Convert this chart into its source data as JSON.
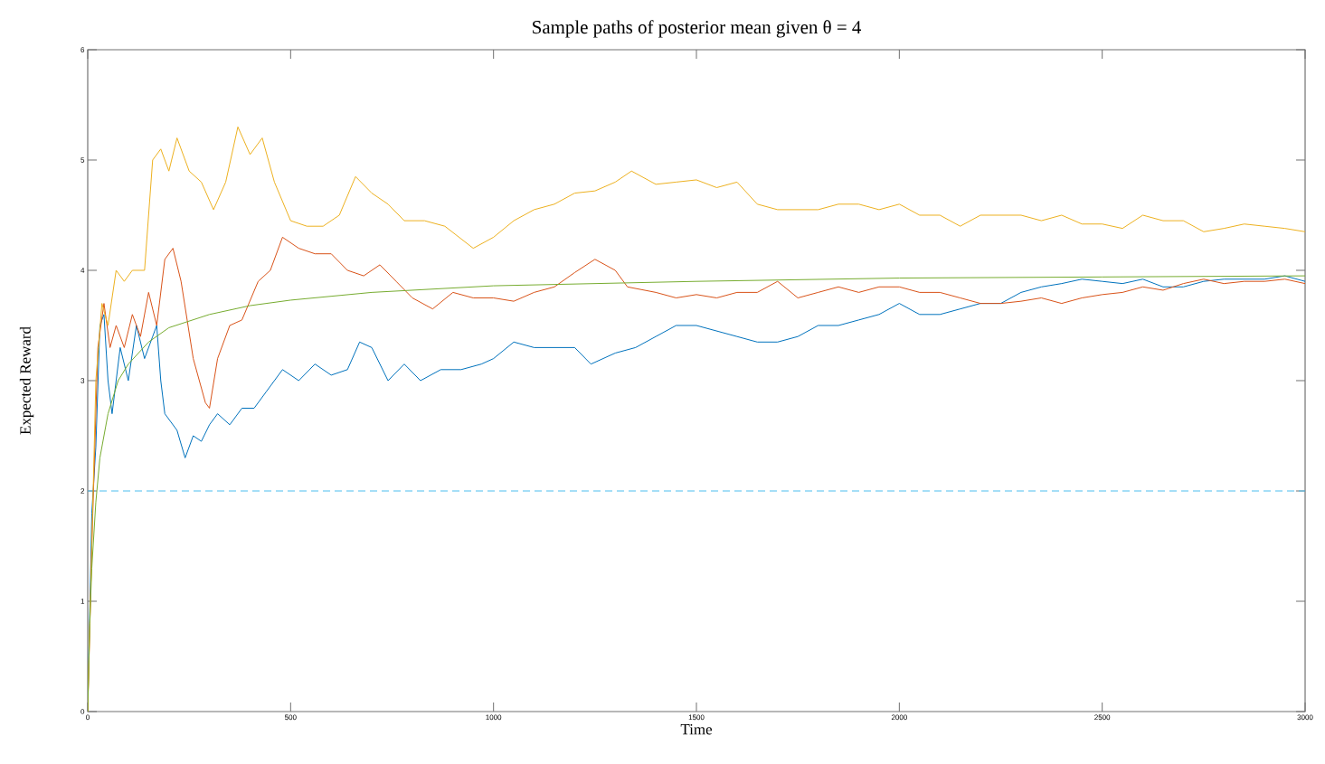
{
  "chart_data": {
    "type": "line",
    "title": "Sample paths of posterior mean given θ = 4",
    "xlabel": "Time",
    "ylabel": "Expected Reward",
    "xlim": [
      0,
      3000
    ],
    "ylim": [
      0,
      6
    ],
    "xticks": [
      0,
      500,
      1000,
      1500,
      2000,
      2500,
      3000
    ],
    "yticks": [
      0,
      1,
      2,
      3,
      4,
      5,
      6
    ],
    "line_style": "solid",
    "ref_lines": [
      {
        "axis": "y",
        "value": 2,
        "color": "#4dbeee",
        "line_style": "dashed"
      }
    ],
    "series": [
      {
        "color": "#0072bd",
        "x": [
          0,
          10,
          20,
          30,
          40,
          50,
          60,
          80,
          100,
          120,
          140,
          160,
          170,
          180,
          190,
          220,
          240,
          260,
          280,
          300,
          320,
          350,
          380,
          410,
          440,
          480,
          520,
          560,
          600,
          640,
          670,
          700,
          740,
          780,
          820,
          870,
          920,
          970,
          1000,
          1050,
          1100,
          1150,
          1200,
          1240,
          1300,
          1350,
          1400,
          1450,
          1500,
          1550,
          1600,
          1650,
          1700,
          1750,
          1800,
          1850,
          1900,
          1950,
          2000,
          2050,
          2100,
          2150,
          2200,
          2250,
          2300,
          2350,
          2400,
          2450,
          2500,
          2550,
          2600,
          2650,
          2700,
          2750,
          2800,
          2850,
          2900,
          2950,
          3000
        ],
        "values": [
          0,
          1.8,
          2.4,
          3.5,
          3.6,
          3.0,
          2.7,
          3.3,
          3.0,
          3.5,
          3.2,
          3.4,
          3.5,
          3.0,
          2.7,
          2.55,
          2.3,
          2.5,
          2.45,
          2.6,
          2.7,
          2.6,
          2.75,
          2.75,
          2.9,
          3.1,
          3.0,
          3.15,
          3.05,
          3.1,
          3.35,
          3.3,
          3.0,
          3.15,
          3.0,
          3.1,
          3.1,
          3.15,
          3.2,
          3.35,
          3.3,
          3.3,
          3.3,
          3.15,
          3.25,
          3.3,
          3.4,
          3.5,
          3.5,
          3.45,
          3.4,
          3.35,
          3.35,
          3.4,
          3.5,
          3.5,
          3.55,
          3.6,
          3.7,
          3.6,
          3.6,
          3.65,
          3.7,
          3.7,
          3.8,
          3.85,
          3.88,
          3.92,
          3.9,
          3.88,
          3.92,
          3.85,
          3.85,
          3.9,
          3.92,
          3.92,
          3.92,
          3.95,
          3.9
        ]
      },
      {
        "color": "#d95319",
        "x": [
          0,
          10,
          25,
          40,
          55,
          70,
          90,
          110,
          130,
          150,
          170,
          190,
          210,
          230,
          260,
          290,
          300,
          320,
          350,
          380,
          420,
          450,
          480,
          520,
          560,
          600,
          640,
          680,
          720,
          760,
          800,
          850,
          900,
          950,
          1000,
          1050,
          1100,
          1150,
          1200,
          1250,
          1300,
          1330,
          1400,
          1450,
          1500,
          1550,
          1600,
          1650,
          1700,
          1750,
          1800,
          1850,
          1900,
          1950,
          2000,
          2050,
          2100,
          2150,
          2200,
          2250,
          2300,
          2350,
          2400,
          2450,
          2500,
          2550,
          2600,
          2650,
          2700,
          2750,
          2800,
          2850,
          2900,
          2950,
          3000
        ],
        "values": [
          0,
          1.5,
          3.3,
          3.7,
          3.3,
          3.5,
          3.3,
          3.6,
          3.4,
          3.8,
          3.5,
          4.1,
          4.2,
          3.9,
          3.2,
          2.8,
          2.75,
          3.2,
          3.5,
          3.55,
          3.9,
          4.0,
          4.3,
          4.2,
          4.15,
          4.15,
          4.0,
          3.95,
          4.05,
          3.9,
          3.75,
          3.65,
          3.8,
          3.75,
          3.75,
          3.72,
          3.8,
          3.85,
          3.98,
          4.1,
          4.0,
          3.85,
          3.8,
          3.75,
          3.78,
          3.75,
          3.8,
          3.8,
          3.9,
          3.75,
          3.8,
          3.85,
          3.8,
          3.85,
          3.85,
          3.8,
          3.8,
          3.75,
          3.7,
          3.7,
          3.72,
          3.75,
          3.7,
          3.75,
          3.78,
          3.8,
          3.85,
          3.82,
          3.88,
          3.92,
          3.88,
          3.9,
          3.9,
          3.92,
          3.88
        ]
      },
      {
        "color": "#edb120",
        "x": [
          0,
          10,
          20,
          35,
          50,
          70,
          90,
          110,
          140,
          160,
          180,
          200,
          220,
          250,
          280,
          310,
          340,
          370,
          400,
          430,
          460,
          500,
          540,
          580,
          620,
          660,
          700,
          740,
          780,
          830,
          880,
          950,
          1000,
          1050,
          1100,
          1150,
          1200,
          1250,
          1300,
          1340,
          1400,
          1450,
          1500,
          1550,
          1600,
          1650,
          1700,
          1750,
          1800,
          1850,
          1900,
          1950,
          2000,
          2050,
          2100,
          2150,
          2200,
          2250,
          2300,
          2350,
          2400,
          2450,
          2500,
          2550,
          2600,
          2650,
          2700,
          2750,
          2800,
          2850,
          2900,
          2950,
          3000
        ],
        "values": [
          0,
          1.5,
          3.0,
          3.7,
          3.5,
          4.0,
          3.9,
          4.0,
          4.0,
          5.0,
          5.1,
          4.9,
          5.2,
          4.9,
          4.8,
          4.55,
          4.8,
          5.3,
          5.05,
          5.2,
          4.8,
          4.45,
          4.4,
          4.4,
          4.5,
          4.85,
          4.7,
          4.6,
          4.45,
          4.45,
          4.4,
          4.2,
          4.3,
          4.45,
          4.55,
          4.6,
          4.7,
          4.72,
          4.8,
          4.9,
          4.78,
          4.8,
          4.82,
          4.75,
          4.8,
          4.6,
          4.55,
          4.55,
          4.55,
          4.6,
          4.6,
          4.55,
          4.6,
          4.5,
          4.5,
          4.4,
          4.5,
          4.5,
          4.5,
          4.45,
          4.5,
          4.42,
          4.42,
          4.38,
          4.5,
          4.45,
          4.45,
          4.35,
          4.38,
          4.42,
          4.4,
          4.38,
          4.35
        ]
      },
      {
        "color": "#77ac30",
        "x": [
          0,
          5,
          10,
          20,
          30,
          50,
          75,
          100,
          150,
          200,
          300,
          400,
          500,
          700,
          1000,
          1500,
          2000,
          2500,
          3000
        ],
        "values": [
          0,
          0.8,
          1.3,
          1.9,
          2.3,
          2.7,
          3.0,
          3.15,
          3.35,
          3.48,
          3.6,
          3.68,
          3.73,
          3.8,
          3.86,
          3.9,
          3.93,
          3.94,
          3.95
        ]
      }
    ]
  }
}
